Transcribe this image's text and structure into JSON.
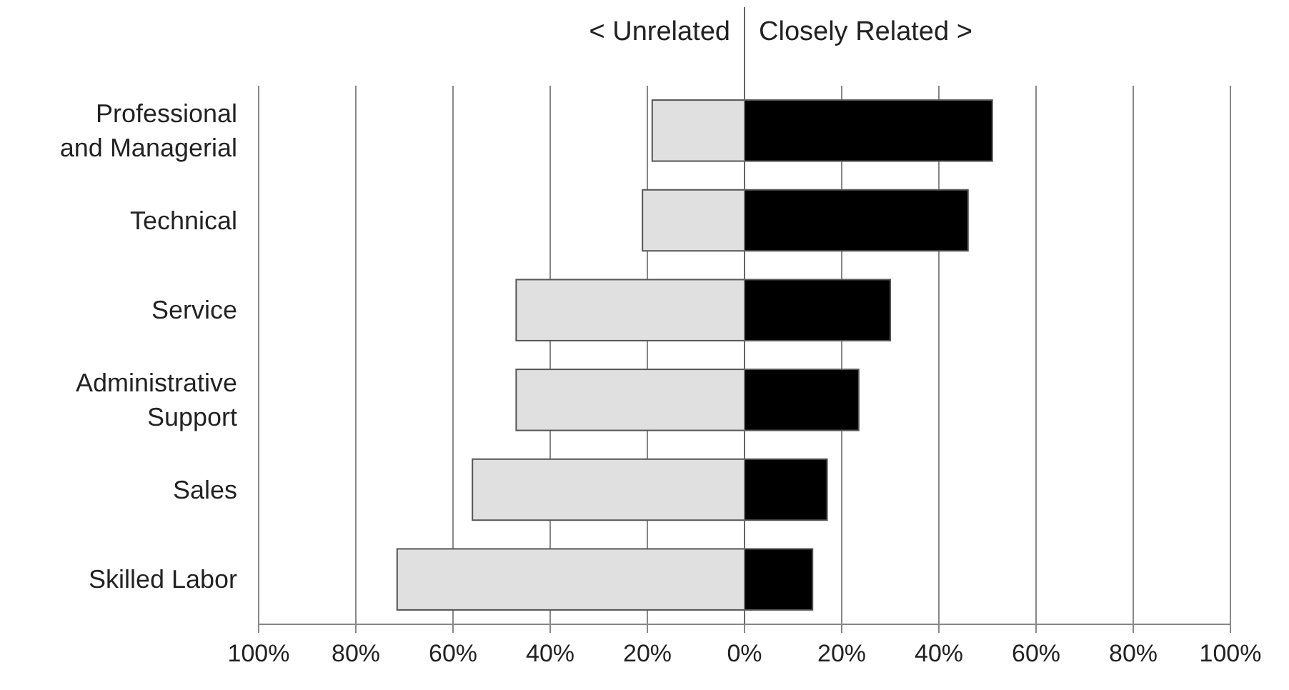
{
  "chart_data": {
    "type": "bar",
    "orientation": "horizontal",
    "stacked": true,
    "grid": "x",
    "legend": "top",
    "categories": [
      "Professional\nand Managerial",
      "Technical",
      "Service",
      "Administrative\nSupport",
      "Sales",
      "Skilled Labor"
    ],
    "series": [
      {
        "name": "< Unrelated",
        "color": "#e0e0e0",
        "values": [
          -19,
          -21,
          -47,
          -47,
          -56,
          -71.5
        ]
      },
      {
        "name": "Closely Related >",
        "color": "#000000",
        "values": [
          51,
          46,
          30,
          23.5,
          17,
          14
        ]
      }
    ],
    "xlim": [
      -100,
      100
    ],
    "xticks": [
      {
        "value": -100,
        "label": "100%"
      },
      {
        "value": -80,
        "label": "80%"
      },
      {
        "value": -60,
        "label": "60%"
      },
      {
        "value": -40,
        "label": "40%"
      },
      {
        "value": -20,
        "label": "20%"
      },
      {
        "value": 0,
        "label": "0%"
      },
      {
        "value": 20,
        "label": "20%"
      },
      {
        "value": 40,
        "label": "40%"
      },
      {
        "value": 60,
        "label": "60%"
      },
      {
        "value": 80,
        "label": "80%"
      },
      {
        "value": 100,
        "label": "100%"
      }
    ]
  }
}
